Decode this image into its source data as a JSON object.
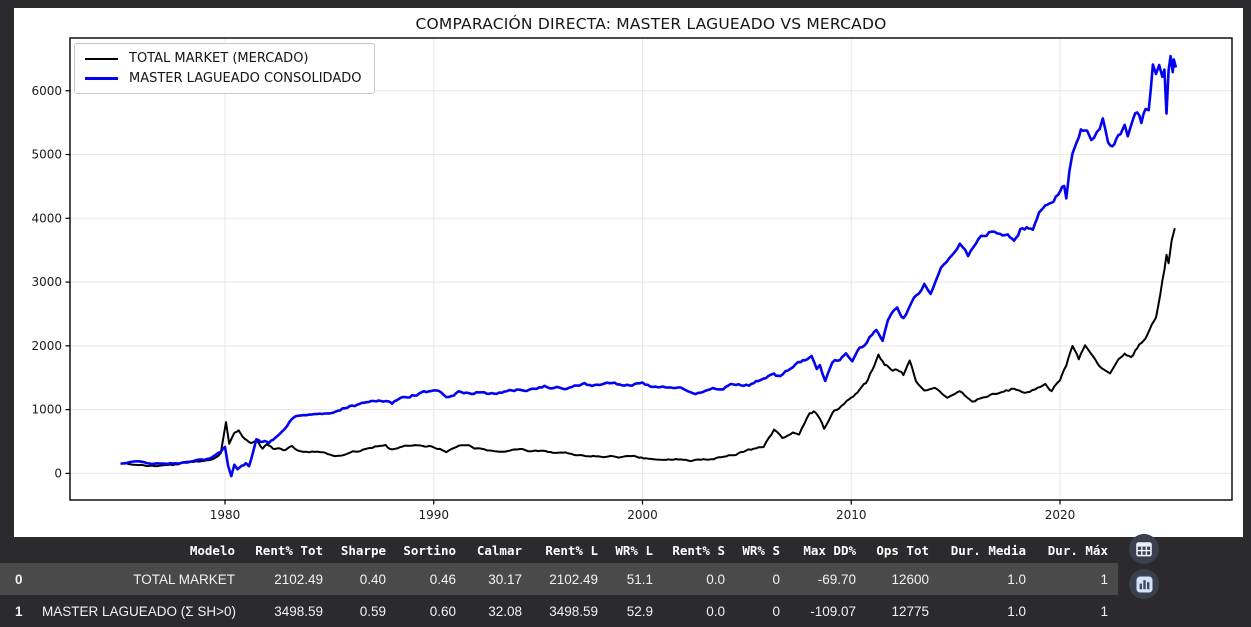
{
  "colors": {
    "page_bg": "#2b2b2e",
    "figure_bg": "#ffffff",
    "grid": "#e8e8e8",
    "spine": "#000000",
    "row_highlight": "#4a4a4b",
    "header_text": "#ffffff",
    "cell_text": "#f2f2f2",
    "button_circle": "#39414f",
    "button_icon_light": "#e9eef7",
    "chart_icon_bg": "#d6e2fa",
    "chart_icon_bars": "#3a4a66"
  },
  "chart_data": {
    "type": "line",
    "title": "COMPARACIÓN DIRECTA: MASTER LAGUEADO VS MERCADO",
    "xlabel": "",
    "ylabel": "",
    "x_ticks": [
      1980,
      1990,
      2000,
      2010,
      2020
    ],
    "y_ticks": [
      0,
      1000,
      2000,
      3000,
      4000,
      5000,
      6000
    ],
    "x_range": [
      1972.6,
      2028.2
    ],
    "y_range": [
      -420,
      6820
    ],
    "grid": true,
    "legend_position": "upper left",
    "series": [
      {
        "name": "TOTAL MARKET (MERCADO)",
        "color": "#000000",
        "linewidth": 2,
        "points": [
          [
            1975.0,
            150
          ],
          [
            1975.5,
            140
          ],
          [
            1976.0,
            125
          ],
          [
            1976.5,
            110
          ],
          [
            1977.0,
            115
          ],
          [
            1977.5,
            130
          ],
          [
            1978.0,
            160
          ],
          [
            1978.6,
            175
          ],
          [
            1979.0,
            200
          ],
          [
            1979.4,
            240
          ],
          [
            1979.8,
            330
          ],
          [
            1980.05,
            800
          ],
          [
            1980.2,
            460
          ],
          [
            1980.45,
            610
          ],
          [
            1980.65,
            660
          ],
          [
            1980.85,
            560
          ],
          [
            1981.05,
            530
          ],
          [
            1981.25,
            480
          ],
          [
            1981.5,
            505
          ],
          [
            1981.8,
            380
          ],
          [
            1982.0,
            450
          ],
          [
            1982.3,
            375
          ],
          [
            1982.6,
            405
          ],
          [
            1982.9,
            375
          ],
          [
            1983.2,
            450
          ],
          [
            1983.5,
            385
          ],
          [
            1983.9,
            375
          ],
          [
            1984.3,
            350
          ],
          [
            1984.8,
            340
          ],
          [
            1985.3,
            290
          ],
          [
            1986.0,
            315
          ],
          [
            1986.6,
            365
          ],
          [
            1987.3,
            445
          ],
          [
            1987.7,
            470
          ],
          [
            1987.9,
            395
          ],
          [
            1988.5,
            420
          ],
          [
            1989.2,
            470
          ],
          [
            1989.8,
            445
          ],
          [
            1990.3,
            395
          ],
          [
            1990.6,
            340
          ],
          [
            1991.2,
            420
          ],
          [
            1991.7,
            400
          ],
          [
            1992.2,
            370
          ],
          [
            1992.8,
            345
          ],
          [
            1993.4,
            355
          ],
          [
            1994.0,
            385
          ],
          [
            1994.5,
            360
          ],
          [
            1995.0,
            365
          ],
          [
            1995.6,
            340
          ],
          [
            1996.2,
            330
          ],
          [
            1996.8,
            310
          ],
          [
            1997.4,
            290
          ],
          [
            1998.0,
            270
          ],
          [
            1998.6,
            265
          ],
          [
            1999.2,
            260
          ],
          [
            1999.6,
            290
          ],
          [
            2000.4,
            235
          ],
          [
            2001.0,
            230
          ],
          [
            2001.6,
            225
          ],
          [
            2002.2,
            215
          ],
          [
            2002.8,
            210
          ],
          [
            2003.4,
            240
          ],
          [
            2004.0,
            290
          ],
          [
            2004.6,
            330
          ],
          [
            2005.2,
            370
          ],
          [
            2005.8,
            420
          ],
          [
            2006.3,
            680
          ],
          [
            2006.7,
            550
          ],
          [
            2007.2,
            625
          ],
          [
            2007.5,
            600
          ],
          [
            2008.0,
            940
          ],
          [
            2008.2,
            965
          ],
          [
            2008.5,
            865
          ],
          [
            2008.7,
            710
          ],
          [
            2009.1,
            940
          ],
          [
            2009.4,
            1020
          ],
          [
            2009.9,
            1150
          ],
          [
            2010.2,
            1230
          ],
          [
            2010.5,
            1335
          ],
          [
            2010.8,
            1440
          ],
          [
            2011.0,
            1600
          ],
          [
            2011.3,
            1870
          ],
          [
            2011.6,
            1700
          ],
          [
            2011.9,
            1630
          ],
          [
            2012.2,
            1620
          ],
          [
            2012.5,
            1540
          ],
          [
            2012.8,
            1740
          ],
          [
            2013.1,
            1450
          ],
          [
            2013.5,
            1330
          ],
          [
            2014.0,
            1380
          ],
          [
            2014.6,
            1180
          ],
          [
            2015.2,
            1300
          ],
          [
            2015.8,
            1125
          ],
          [
            2016.3,
            1190
          ],
          [
            2016.8,
            1240
          ],
          [
            2017.3,
            1300
          ],
          [
            2017.8,
            1340
          ],
          [
            2018.3,
            1250
          ],
          [
            2018.8,
            1350
          ],
          [
            2019.3,
            1380
          ],
          [
            2019.6,
            1280
          ],
          [
            2020.0,
            1450
          ],
          [
            2020.3,
            1700
          ],
          [
            2020.6,
            2010
          ],
          [
            2020.9,
            1780
          ],
          [
            2021.2,
            1990
          ],
          [
            2021.6,
            1850
          ],
          [
            2021.9,
            1700
          ],
          [
            2022.4,
            1595
          ],
          [
            2022.8,
            1830
          ],
          [
            2023.1,
            1935
          ],
          [
            2023.4,
            1830
          ],
          [
            2023.7,
            1990
          ],
          [
            2024.0,
            2090
          ],
          [
            2024.3,
            2250
          ],
          [
            2024.6,
            2450
          ],
          [
            2024.8,
            2770
          ],
          [
            2025.0,
            3190
          ],
          [
            2025.1,
            3400
          ],
          [
            2025.2,
            3250
          ],
          [
            2025.35,
            3600
          ],
          [
            2025.5,
            3815
          ]
        ]
      },
      {
        "name": "MASTER LAGUEADO CONSOLIDADO",
        "color": "#0303f0",
        "linewidth": 2.6,
        "points": [
          [
            1975.0,
            155
          ],
          [
            1975.5,
            160
          ],
          [
            1976.0,
            150
          ],
          [
            1976.5,
            150
          ],
          [
            1977.0,
            145
          ],
          [
            1977.5,
            150
          ],
          [
            1978.0,
            160
          ],
          [
            1978.6,
            180
          ],
          [
            1979.0,
            195
          ],
          [
            1979.4,
            245
          ],
          [
            1979.8,
            330
          ],
          [
            1980.0,
            400
          ],
          [
            1980.15,
            100
          ],
          [
            1980.3,
            -65
          ],
          [
            1980.45,
            115
          ],
          [
            1980.6,
            40
          ],
          [
            1980.8,
            90
          ],
          [
            1981.0,
            140
          ],
          [
            1981.15,
            90
          ],
          [
            1981.35,
            320
          ],
          [
            1981.5,
            505
          ],
          [
            1981.7,
            480
          ],
          [
            1981.9,
            520
          ],
          [
            1982.1,
            470
          ],
          [
            1982.3,
            520
          ],
          [
            1982.6,
            585
          ],
          [
            1982.85,
            690
          ],
          [
            1983.1,
            820
          ],
          [
            1983.4,
            920
          ],
          [
            1983.9,
            950
          ],
          [
            1984.4,
            965
          ],
          [
            1984.9,
            940
          ],
          [
            1985.4,
            955
          ],
          [
            1986.1,
            1080
          ],
          [
            1986.9,
            1105
          ],
          [
            1987.7,
            1155
          ],
          [
            1988.0,
            1080
          ],
          [
            1988.5,
            1210
          ],
          [
            1989.3,
            1260
          ],
          [
            1990.1,
            1270
          ],
          [
            1990.6,
            1210
          ],
          [
            1991.2,
            1285
          ],
          [
            1991.8,
            1250
          ],
          [
            1992.3,
            1290
          ],
          [
            1992.9,
            1260
          ],
          [
            1993.5,
            1300
          ],
          [
            1994.1,
            1330
          ],
          [
            1994.7,
            1320
          ],
          [
            1995.3,
            1355
          ],
          [
            1995.9,
            1345
          ],
          [
            1996.5,
            1360
          ],
          [
            1997.1,
            1390
          ],
          [
            1997.7,
            1385
          ],
          [
            1998.3,
            1405
          ],
          [
            1998.9,
            1395
          ],
          [
            1999.5,
            1410
          ],
          [
            2000.0,
            1420
          ],
          [
            2000.5,
            1330
          ],
          [
            2001.1,
            1325
          ],
          [
            2001.7,
            1305
          ],
          [
            2002.3,
            1305
          ],
          [
            2002.9,
            1270
          ],
          [
            2003.5,
            1310
          ],
          [
            2004.1,
            1380
          ],
          [
            2004.6,
            1420
          ],
          [
            2005.1,
            1390
          ],
          [
            2005.9,
            1515
          ],
          [
            2006.3,
            1570
          ],
          [
            2006.6,
            1515
          ],
          [
            2007.1,
            1650
          ],
          [
            2007.8,
            1780
          ],
          [
            2008.1,
            1830
          ],
          [
            2008.35,
            1620
          ],
          [
            2008.5,
            1700
          ],
          [
            2008.75,
            1465
          ],
          [
            2009.1,
            1725
          ],
          [
            2009.45,
            1780
          ],
          [
            2009.75,
            1905
          ],
          [
            2010.05,
            1750
          ],
          [
            2010.4,
            1935
          ],
          [
            2010.75,
            2015
          ],
          [
            2011.0,
            2150
          ],
          [
            2011.2,
            2250
          ],
          [
            2011.5,
            2070
          ],
          [
            2011.75,
            2400
          ],
          [
            2012.2,
            2610
          ],
          [
            2012.5,
            2450
          ],
          [
            2013.0,
            2770
          ],
          [
            2013.5,
            2980
          ],
          [
            2013.8,
            2820
          ],
          [
            2014.3,
            3190
          ],
          [
            2014.7,
            3345
          ],
          [
            2015.2,
            3555
          ],
          [
            2015.6,
            3400
          ],
          [
            2016.1,
            3710
          ],
          [
            2016.6,
            3770
          ],
          [
            2017.0,
            3710
          ],
          [
            2017.5,
            3745
          ],
          [
            2017.8,
            3640
          ],
          [
            2018.1,
            3815
          ],
          [
            2018.4,
            3870
          ],
          [
            2018.7,
            3760
          ],
          [
            2019.0,
            4075
          ],
          [
            2019.3,
            4180
          ],
          [
            2019.6,
            4285
          ],
          [
            2019.9,
            4390
          ],
          [
            2020.2,
            4495
          ],
          [
            2020.3,
            4340
          ],
          [
            2020.45,
            4760
          ],
          [
            2020.6,
            5070
          ],
          [
            2020.8,
            5230
          ],
          [
            2021.0,
            5385
          ],
          [
            2021.3,
            5460
          ],
          [
            2021.5,
            5300
          ],
          [
            2021.9,
            5430
          ],
          [
            2022.05,
            5565
          ],
          [
            2022.3,
            5225
          ],
          [
            2022.5,
            5120
          ],
          [
            2022.8,
            5330
          ],
          [
            2023.1,
            5490
          ],
          [
            2023.25,
            5280
          ],
          [
            2023.5,
            5540
          ],
          [
            2023.7,
            5645
          ],
          [
            2023.9,
            5515
          ],
          [
            2024.1,
            5750
          ],
          [
            2024.25,
            5700
          ],
          [
            2024.45,
            6375
          ],
          [
            2024.6,
            6220
          ],
          [
            2024.75,
            6325
          ],
          [
            2024.9,
            6140
          ],
          [
            2025.0,
            6250
          ],
          [
            2025.1,
            5590
          ],
          [
            2025.2,
            6245
          ],
          [
            2025.3,
            6480
          ],
          [
            2025.4,
            6270
          ],
          [
            2025.45,
            6430
          ],
          [
            2025.55,
            6330
          ]
        ]
      }
    ]
  },
  "table": {
    "columns": [
      "Modelo",
      "Rent% Tot",
      "Sharpe",
      "Sortino",
      "Calmar",
      "Rent% L",
      "WR% L",
      "Rent% S",
      "WR% S",
      "Max DD%",
      "Ops Tot",
      "Dur. Media",
      "Dur. Máx"
    ],
    "rows": [
      {
        "index": "0",
        "selected": true,
        "cells": [
          "TOTAL MARKET",
          "2102.49",
          "0.40",
          "0.46",
          "30.17",
          "2102.49",
          "51.1",
          "0.0",
          "0",
          "-69.70",
          "12600",
          "1.0",
          "1"
        ]
      },
      {
        "index": "1",
        "selected": false,
        "cells": [
          "MASTER LAGUEADO (Σ SH>0)",
          "3498.59",
          "0.59",
          "0.60",
          "32.08",
          "3498.59",
          "52.9",
          "0.0",
          "0",
          "-109.07",
          "12775",
          "1.0",
          "1"
        ]
      }
    ]
  },
  "toolbar": {
    "buttons": [
      {
        "id": "table-view-button",
        "icon": "table-icon"
      },
      {
        "id": "chart-view-button",
        "icon": "bar-chart-icon"
      }
    ]
  }
}
